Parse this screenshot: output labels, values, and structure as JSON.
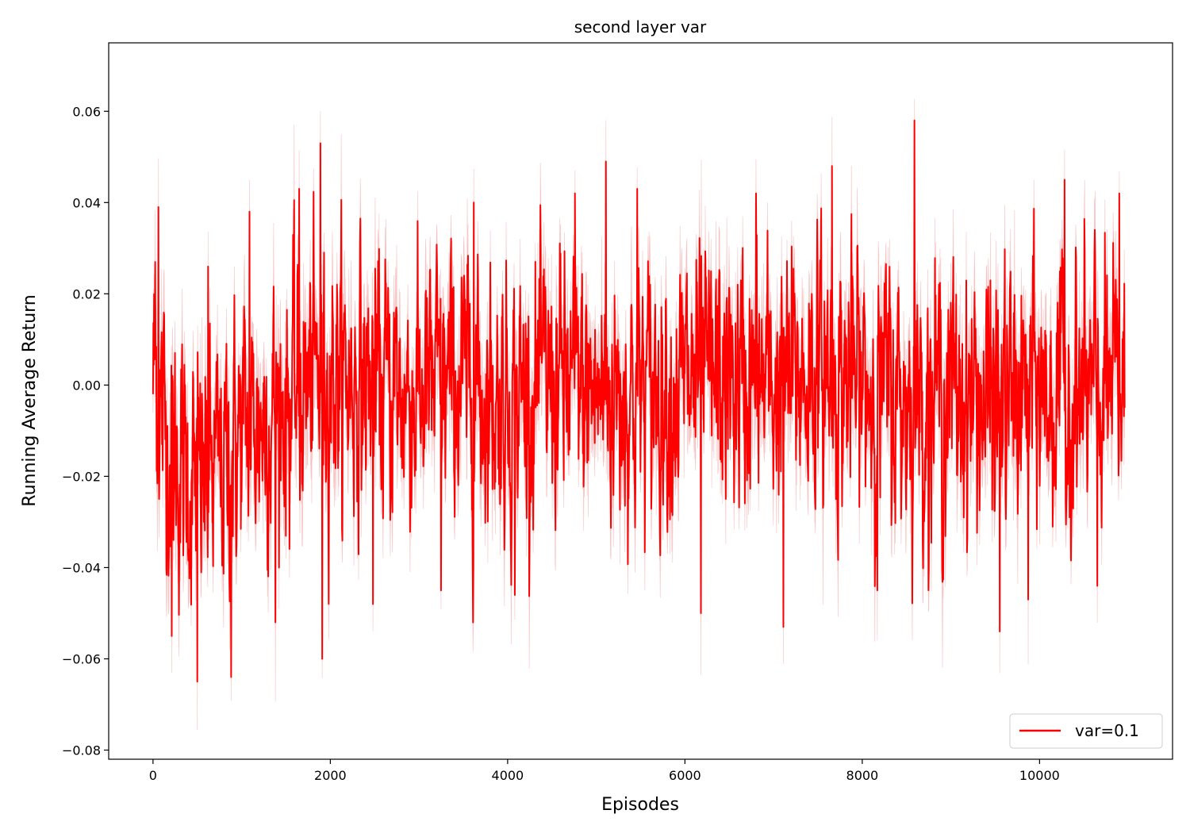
{
  "chart_data": {
    "type": "line",
    "title": "second layer var",
    "xlabel": "Episodes",
    "ylabel": "Running Average Return",
    "xlim": [
      -500,
      11500
    ],
    "ylim": [
      -0.082,
      0.075
    ],
    "xticks": [
      0,
      2000,
      4000,
      6000,
      8000,
      10000
    ],
    "xtick_labels": [
      "0",
      "2000",
      "4000",
      "6000",
      "8000",
      "10000"
    ],
    "yticks": [
      -0.08,
      -0.06,
      -0.04,
      -0.02,
      0.0,
      0.02,
      0.04,
      0.06
    ],
    "ytick_labels": [
      "−0.08",
      "−0.06",
      "−0.04",
      "−0.02",
      "0.00",
      "0.02",
      "0.04",
      "0.06"
    ],
    "grid": false,
    "legend_position": "bottom-right",
    "x_range": [
      0,
      10960
    ],
    "series": [
      {
        "name": "var=0.1",
        "color": "#ff0000",
        "band_color": "#f4a6a6",
        "trend": [
          [
            0,
            0.005
          ],
          [
            200,
            -0.015
          ],
          [
            500,
            -0.022
          ],
          [
            800,
            -0.018
          ],
          [
            1000,
            -0.01
          ],
          [
            1500,
            -0.004
          ],
          [
            2000,
            0.003
          ],
          [
            2500,
            0.0
          ],
          [
            3000,
            -0.002
          ],
          [
            3500,
            0.0
          ],
          [
            4000,
            -0.003
          ],
          [
            4500,
            0.0
          ],
          [
            5000,
            -0.002
          ],
          [
            5500,
            -0.001
          ],
          [
            6000,
            0.0
          ],
          [
            6500,
            0.0
          ],
          [
            7000,
            0.0
          ],
          [
            7500,
            0.003
          ],
          [
            8000,
            0.0
          ],
          [
            8500,
            -0.003
          ],
          [
            9000,
            -0.002
          ],
          [
            9500,
            -0.004
          ],
          [
            10000,
            -0.002
          ],
          [
            10500,
            -0.004
          ],
          [
            10960,
            0.0
          ]
        ],
        "noise_std": 0.015,
        "band_halfwidth": 0.008,
        "extremes": [
          [
            0,
            -0.002
          ],
          [
            25,
            0.027
          ],
          [
            60,
            0.039
          ],
          [
            100,
            -0.013
          ],
          [
            210,
            -0.055
          ],
          [
            500,
            -0.065
          ],
          [
            620,
            0.026
          ],
          [
            880,
            -0.064
          ],
          [
            1090,
            0.038
          ],
          [
            1380,
            -0.052
          ],
          [
            1650,
            0.043
          ],
          [
            1890,
            0.053
          ],
          [
            1910,
            -0.06
          ],
          [
            2480,
            -0.048
          ],
          [
            3250,
            -0.045
          ],
          [
            3620,
            0.04
          ],
          [
            4080,
            -0.046
          ],
          [
            4760,
            0.042
          ],
          [
            5110,
            0.049
          ],
          [
            5460,
            0.043
          ],
          [
            6180,
            -0.05
          ],
          [
            6800,
            0.042
          ],
          [
            7110,
            -0.053
          ],
          [
            7660,
            0.048
          ],
          [
            8170,
            -0.045
          ],
          [
            8590,
            0.058
          ],
          [
            8750,
            -0.04
          ],
          [
            9550,
            -0.054
          ],
          [
            9870,
            -0.047
          ],
          [
            10280,
            0.045
          ],
          [
            10650,
            -0.044
          ],
          [
            10900,
            0.042
          ],
          [
            10960,
            -0.005
          ]
        ]
      }
    ]
  }
}
